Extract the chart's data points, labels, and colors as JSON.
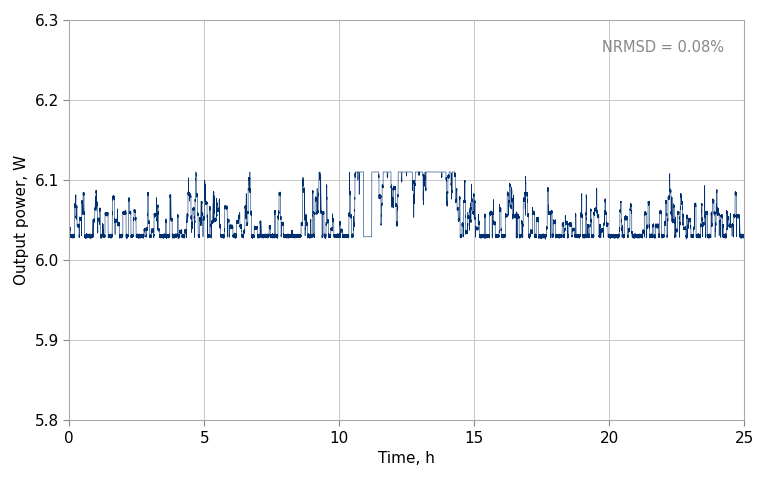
{
  "xlabel": "Time, h",
  "ylabel": "Output power, W",
  "xlim": [
    0,
    25
  ],
  "ylim": [
    5.8,
    6.3
  ],
  "yticks": [
    5.8,
    5.9,
    6.0,
    6.1,
    6.2,
    6.3
  ],
  "xticks": [
    0,
    5,
    10,
    15,
    20,
    25
  ],
  "base_power": 6.03,
  "nrmsd_text": "NRMSD = 0.08%",
  "line_color": "#003070",
  "background_color": "#ffffff",
  "grid_color": "#c8c8c8",
  "annotation_color": "#888888",
  "n_points": 50000,
  "duration_hours": 25,
  "tick_labelsize": 11,
  "label_fontsize": 11,
  "annotation_fontsize": 10.5
}
